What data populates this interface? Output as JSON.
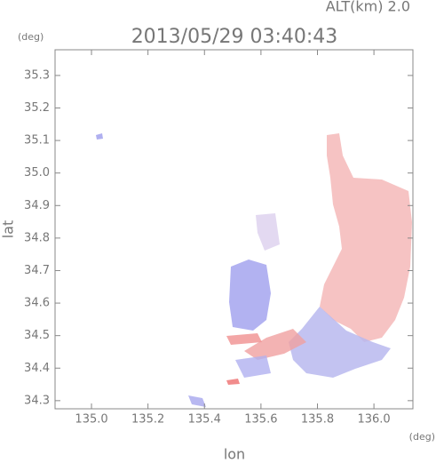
{
  "chart_data": {
    "type": "map",
    "title": "2013/05/29 03:40:43",
    "subtitle": "ALT(km) 2.0",
    "y_unit": "(deg)",
    "x_unit": "(deg)",
    "xlabel": "lon",
    "ylabel": "lat",
    "xlim": [
      134.871,
      136.138
    ],
    "ylim": [
      34.275,
      35.379
    ],
    "xticks": [
      {
        "value": 135,
        "label": "135.0"
      },
      135.2,
      135.4,
      135.6,
      135.8,
      {
        "value": 136,
        "label": "136.0"
      }
    ],
    "yticks": [
      35.3,
      35.2,
      35.1,
      {
        "value": 35,
        "label": "35.0"
      },
      34.9,
      34.8,
      34.7,
      34.6,
      34.5,
      34.4,
      34.3
    ]
  }
}
